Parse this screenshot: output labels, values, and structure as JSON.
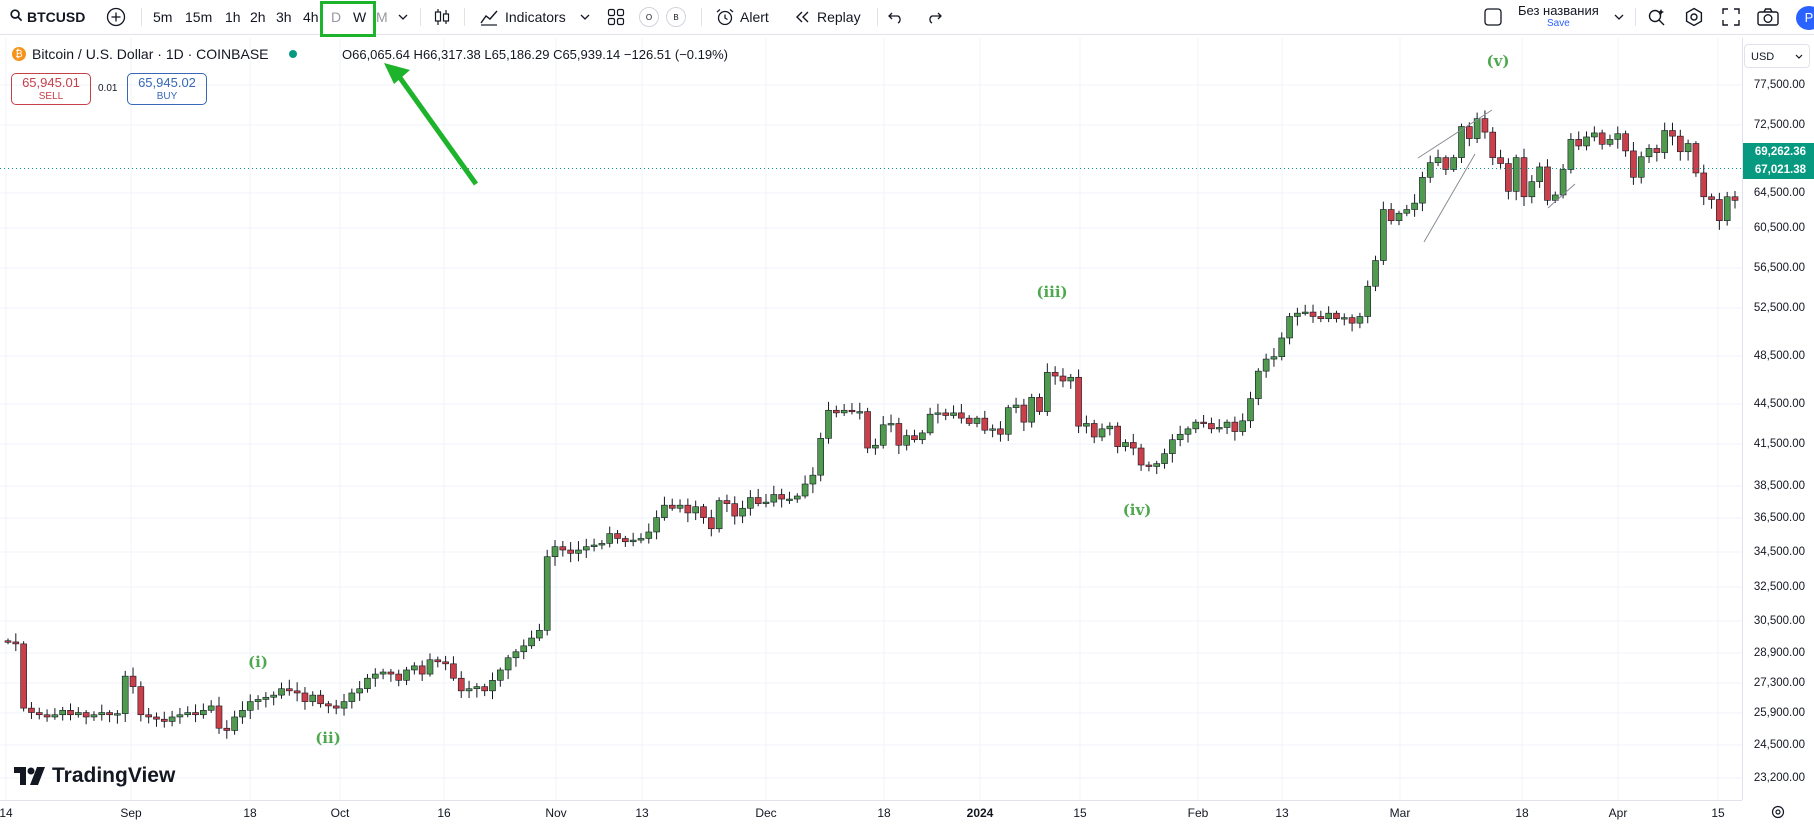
{
  "toolbar": {
    "symbol": "BTCUSD",
    "timeframes": [
      "5m",
      "15m",
      "1h",
      "2h",
      "3h",
      "4h"
    ],
    "tf_d": "D",
    "tf_w": "W",
    "tf_m": "M",
    "indicators": "Indicators",
    "circle_o": "O",
    "circle_b": "B",
    "alert": "Alert",
    "replay": "Replay",
    "layout_name": "Без названия",
    "layout_save": "Save",
    "avatar": "P"
  },
  "legend": {
    "title": "Bitcoin / U.S. Dollar · 1D · COINBASE",
    "ohlc": "O66,065.64  H66,317.38  L65,186.29  C65,939.14  −126.51 (−0.19%)",
    "sell_price": "65,945.01",
    "sell_label": "SELL",
    "spread": "0.01",
    "buy_price": "65,945.02",
    "buy_label": "BUY"
  },
  "price_axis": {
    "currency": "USD",
    "labels": [
      "77,500.00",
      "72,500.00",
      "64,500.00",
      "60,500.00",
      "56,500.00",
      "52,500.00",
      "48,500.00",
      "44,500.00",
      "41,500.00",
      "38,500.00",
      "36,500.00",
      "34,500.00",
      "32,500.00",
      "30,500.00",
      "28,900.00",
      "27,300.00",
      "25,900.00",
      "24,500.00",
      "23,200.00"
    ],
    "tag_high": "69,262.36",
    "tag_low": "67,021.38"
  },
  "time_axis": {
    "labels": [
      "14",
      "Sep",
      "18",
      "Oct",
      "16",
      "Nov",
      "13",
      "Dec",
      "18",
      "2024",
      "15",
      "Feb",
      "13",
      "Mar",
      "18",
      "Apr",
      "15"
    ]
  },
  "waves": [
    "(i)",
    "(ii)",
    "(iii)",
    "(iv)",
    "(v)"
  ],
  "brand": "TradingView",
  "colors": {
    "up": "#4f9a4f",
    "down": "#c9404a",
    "accent": "#2962ff",
    "highlight": "#1db32a"
  },
  "chart_data": {
    "type": "candlestick",
    "title": "Bitcoin / U.S. Dollar · 1D · COINBASE",
    "xlabel": "",
    "ylabel": "",
    "ylim": [
      23200,
      77500
    ],
    "y_scale": "log",
    "x_ticks": [
      "14",
      "Sep",
      "18",
      "Oct",
      "16",
      "Nov",
      "13",
      "Dec",
      "18",
      "2024",
      "15",
      "Feb",
      "13",
      "Mar",
      "18",
      "Apr",
      "15"
    ],
    "close_approx": [
      29400,
      29300,
      26200,
      26000,
      25900,
      25800,
      25900,
      26100,
      25900,
      26000,
      25800,
      25900,
      26000,
      25900,
      25950,
      27700,
      27200,
      25900,
      25800,
      25700,
      25600,
      25800,
      25900,
      26000,
      25900,
      26100,
      26300,
      25300,
      25200,
      25800,
      26100,
      26500,
      26600,
      26700,
      26800,
      27100,
      27000,
      26900,
      26500,
      26800,
      26400,
      26300,
      26200,
      26500,
      26900,
      27100,
      27600,
      27800,
      27900,
      27800,
      27500,
      28000,
      28200,
      27800,
      28500,
      28400,
      28300,
      27600,
      27000,
      27100,
      27200,
      27000,
      27500,
      28000,
      28600,
      28900,
      29200,
      29600,
      30000,
      34100,
      34700,
      34500,
      34300,
      34500,
      34700,
      34800,
      34900,
      35500,
      35200,
      35000,
      35100,
      35200,
      35600,
      36500,
      37300,
      37100,
      37300,
      36800,
      37200,
      36500,
      35800,
      37600,
      37400,
      36600,
      37100,
      37800,
      37400,
      37500,
      38000,
      37700,
      37700,
      37900,
      38700,
      39300,
      41900,
      44000,
      43800,
      44000,
      43900,
      43900,
      41200,
      41400,
      42900,
      43000,
      41400,
      42100,
      41800,
      42300,
      43700,
      43800,
      43600,
      43800,
      43400,
      43000,
      43400,
      42500,
      42600,
      42200,
      44200,
      44400,
      43100,
      45000,
      43900,
      47000,
      46700,
      46300,
      46600,
      42800,
      43000,
      42000,
      42600,
      42800,
      41300,
      41600,
      41200,
      40000,
      39900,
      40100,
      40800,
      41800,
      42200,
      42600,
      43100,
      43000,
      42600,
      42700,
      43100,
      42400,
      43200,
      44900,
      47100,
      48100,
      48300,
      49900,
      51800,
      52100,
      52200,
      51800,
      51600,
      52100,
      51600,
      51700,
      51200,
      51800,
      54600,
      57100,
      62400,
      61200,
      62000,
      62400,
      63100,
      66000,
      67700,
      68300,
      66900,
      68300,
      72100,
      70600,
      73100,
      71400,
      68300,
      67600,
      64400,
      68300,
      63800,
      65500,
      67200,
      63400,
      64000,
      66900,
      70500,
      69700,
      70800,
      71300,
      69900,
      70500,
      71200,
      69100,
      66000,
      68400,
      69400,
      68900,
      71600,
      70900,
      69000,
      70000,
      66500,
      63800,
      63500,
      61200,
      63800,
      63400
    ]
  }
}
